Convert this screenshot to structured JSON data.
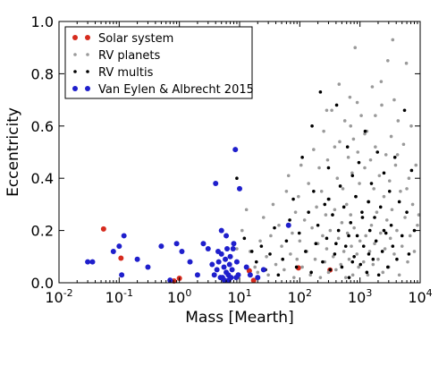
{
  "chart_data": {
    "type": "scatter",
    "xlabel": "Mass [Mearth]",
    "ylabel": "Eccentricity",
    "xscale": "log",
    "xlim": [
      0.01,
      10000
    ],
    "ylim": [
      0,
      1.0
    ],
    "grid": false,
    "legend_position": "top-left",
    "x_ticks": [
      {
        "value": 0.01,
        "base": "10",
        "exp": "-2"
      },
      {
        "value": 0.1,
        "base": "10",
        "exp": "-1"
      },
      {
        "value": 1,
        "base": "10",
        "exp": "0"
      },
      {
        "value": 10,
        "base": "10",
        "exp": "1"
      },
      {
        "value": 100,
        "base": "10",
        "exp": "2"
      },
      {
        "value": 1000,
        "base": "10",
        "exp": "3"
      },
      {
        "value": 10000,
        "base": "10",
        "exp": "4"
      }
    ],
    "y_ticks": [
      "0.0",
      "0.2",
      "0.4",
      "0.6",
      "0.8",
      "1.0"
    ],
    "series": [
      {
        "name": "Solar system",
        "color": "#d62b1e",
        "marker_radius": 3,
        "points": [
          [
            0.055,
            0.206
          ],
          [
            0.815,
            0.007
          ],
          [
            1.0,
            0.017
          ],
          [
            0.107,
            0.094
          ],
          [
            318,
            0.049
          ],
          [
            95,
            0.057
          ],
          [
            14.5,
            0.046
          ],
          [
            17.1,
            0.009
          ]
        ]
      },
      {
        "name": "RV planets",
        "color": "#9a9a9a",
        "marker_radius": 1.8,
        "points": [
          [
            9,
            0.13
          ],
          [
            11,
            0.2
          ],
          [
            13,
            0.28
          ],
          [
            15,
            0.12
          ],
          [
            18,
            0.06
          ],
          [
            20,
            0.04
          ],
          [
            22,
            0.16
          ],
          [
            25,
            0.25
          ],
          [
            28,
            0.1
          ],
          [
            30,
            0.03
          ],
          [
            33,
            0.18
          ],
          [
            36,
            0.3
          ],
          [
            40,
            0.07
          ],
          [
            45,
            0.22
          ],
          [
            50,
            0.14
          ],
          [
            55,
            0.05
          ],
          [
            60,
            0.35
          ],
          [
            65,
            0.41
          ],
          [
            70,
            0.11
          ],
          [
            75,
            0.19
          ],
          [
            80,
            0.02
          ],
          [
            85,
            0.27
          ],
          [
            90,
            0.09
          ],
          [
            95,
            0.33
          ],
          [
            100,
            0.16
          ],
          [
            105,
            0.45
          ],
          [
            110,
            0.06
          ],
          [
            120,
            0.24
          ],
          [
            130,
            0.12
          ],
          [
            140,
            0.38
          ],
          [
            150,
            0.03
          ],
          [
            160,
            0.21
          ],
          [
            170,
            0.51
          ],
          [
            180,
            0.09
          ],
          [
            190,
            0.29
          ],
          [
            200,
            0.15
          ],
          [
            210,
            0.44
          ],
          [
            220,
            0.02
          ],
          [
            230,
            0.35
          ],
          [
            240,
            0.18
          ],
          [
            250,
            0.58
          ],
          [
            260,
            0.08
          ],
          [
            270,
            0.26
          ],
          [
            280,
            0.13
          ],
          [
            290,
            0.47
          ],
          [
            300,
            0.04
          ],
          [
            310,
            0.32
          ],
          [
            320,
            0.2
          ],
          [
            340,
            0.66
          ],
          [
            360,
            0.1
          ],
          [
            380,
            0.28
          ],
          [
            400,
            0.05
          ],
          [
            420,
            0.4
          ],
          [
            440,
            0.17
          ],
          [
            460,
            0.54
          ],
          [
            480,
            0.07
          ],
          [
            500,
            0.23
          ],
          [
            520,
            0.36
          ],
          [
            540,
            0.12
          ],
          [
            560,
            0.62
          ],
          [
            580,
            0.02
          ],
          [
            600,
            0.3
          ],
          [
            620,
            0.19
          ],
          [
            640,
            0.48
          ],
          [
            660,
            0.09
          ],
          [
            680,
            0.71
          ],
          [
            700,
            0.26
          ],
          [
            720,
            0.14
          ],
          [
            740,
            0.42
          ],
          [
            760,
            0.03
          ],
          [
            780,
            0.55
          ],
          [
            800,
            0.21
          ],
          [
            830,
            0.9
          ],
          [
            860,
            0.33
          ],
          [
            890,
            0.11
          ],
          [
            920,
            0.5
          ],
          [
            950,
            0.06
          ],
          [
            980,
            0.38
          ],
          [
            1000,
            0.16
          ],
          [
            1050,
            0.64
          ],
          [
            1100,
            0.25
          ],
          [
            1150,
            0.08
          ],
          [
            1200,
            0.44
          ],
          [
            1250,
            0.18
          ],
          [
            1300,
            0.58
          ],
          [
            1350,
            0.03
          ],
          [
            1400,
            0.31
          ],
          [
            1450,
            0.12
          ],
          [
            1500,
            0.47
          ],
          [
            1550,
            0.22
          ],
          [
            1600,
            0.75
          ],
          [
            1650,
            0.07
          ],
          [
            1700,
            0.36
          ],
          [
            1750,
            0.15
          ],
          [
            1800,
            0.52
          ],
          [
            1900,
            0.27
          ],
          [
            2000,
            0.09
          ],
          [
            2100,
            0.41
          ],
          [
            2200,
            0.19
          ],
          [
            2300,
            0.68
          ],
          [
            2400,
            0.04
          ],
          [
            2500,
            0.33
          ],
          [
            2600,
            0.13
          ],
          [
            2700,
            0.49
          ],
          [
            2800,
            0.24
          ],
          [
            2900,
            0.85
          ],
          [
            3000,
            0.06
          ],
          [
            3100,
            0.39
          ],
          [
            3200,
            0.17
          ],
          [
            3300,
            0.56
          ],
          [
            3400,
            0.28
          ],
          [
            3500,
            0.93
          ],
          [
            3700,
            0.11
          ],
          [
            3900,
            0.45
          ],
          [
            4100,
            0.2
          ],
          [
            4300,
            0.62
          ],
          [
            4500,
            0.03
          ],
          [
            4700,
            0.35
          ],
          [
            5000,
            0.14
          ],
          [
            5300,
            0.53
          ],
          [
            5600,
            0.25
          ],
          [
            5900,
            0.84
          ],
          [
            6200,
            0.08
          ],
          [
            6500,
            0.4
          ],
          [
            6800,
            0.18
          ],
          [
            7100,
            0.6
          ],
          [
            7500,
            0.3
          ],
          [
            8000,
            0.12
          ],
          [
            8500,
            0.45
          ],
          [
            9000,
            0.22
          ],
          [
            9500,
            0.26
          ],
          [
            2250,
            0.77
          ],
          [
            1800,
            0.64
          ],
          [
            1200,
            0.57
          ],
          [
            900,
            0.69
          ],
          [
            700,
            0.6
          ],
          [
            3700,
            0.7
          ],
          [
            4200,
            0.49
          ],
          [
            6000,
            0.36
          ],
          [
            450,
            0.76
          ],
          [
            380,
            0.52
          ],
          [
            280,
            0.66
          ]
        ]
      },
      {
        "name": "RV multis",
        "color": "#000000",
        "marker_radius": 1.8,
        "points": [
          [
            9,
            0.4
          ],
          [
            12,
            0.17
          ],
          [
            16,
            0.12
          ],
          [
            19,
            0.08
          ],
          [
            23,
            0.14
          ],
          [
            27,
            0.05
          ],
          [
            32,
            0.11
          ],
          [
            38,
            0.21
          ],
          [
            44,
            0.03
          ],
          [
            52,
            0.09
          ],
          [
            60,
            0.16
          ],
          [
            68,
            0.24
          ],
          [
            78,
            0.32
          ],
          [
            88,
            0.06
          ],
          [
            98,
            0.19
          ],
          [
            110,
            0.48
          ],
          [
            125,
            0.12
          ],
          [
            140,
            0.27
          ],
          [
            155,
            0.04
          ],
          [
            170,
            0.35
          ],
          [
            185,
            0.15
          ],
          [
            200,
            0.22
          ],
          [
            220,
            0.73
          ],
          [
            240,
            0.08
          ],
          [
            260,
            0.3
          ],
          [
            280,
            0.17
          ],
          [
            300,
            0.44
          ],
          [
            320,
            0.05
          ],
          [
            350,
            0.26
          ],
          [
            380,
            0.11
          ],
          [
            410,
            0.68
          ],
          [
            440,
            0.2
          ],
          [
            470,
            0.37
          ],
          [
            500,
            0.06
          ],
          [
            540,
            0.29
          ],
          [
            580,
            0.14
          ],
          [
            620,
            0.52
          ],
          [
            660,
            0.02
          ],
          [
            700,
            0.23
          ],
          [
            750,
            0.41
          ],
          [
            800,
            0.1
          ],
          [
            850,
            0.33
          ],
          [
            900,
            0.18
          ],
          [
            960,
            0.46
          ],
          [
            1020,
            0.07
          ],
          [
            1080,
            0.27
          ],
          [
            1150,
            0.14
          ],
          [
            1220,
            0.58
          ],
          [
            1300,
            0.04
          ],
          [
            1380,
            0.31
          ],
          [
            1460,
            0.2
          ],
          [
            1550,
            0.38
          ],
          [
            1650,
            0.09
          ],
          [
            1750,
            0.25
          ],
          [
            1850,
            0.16
          ],
          [
            1950,
            0.5
          ],
          [
            2050,
            0.03
          ],
          [
            2200,
            0.29
          ],
          [
            2350,
            0.12
          ],
          [
            2500,
            0.42
          ],
          [
            2700,
            0.19
          ],
          [
            2900,
            0.06
          ],
          [
            3100,
            0.35
          ],
          [
            3300,
            0.22
          ],
          [
            3500,
            0.14
          ],
          [
            3800,
            0.48
          ],
          [
            4100,
            0.09
          ],
          [
            4500,
            0.31
          ],
          [
            5000,
            0.18
          ],
          [
            5500,
            0.66
          ],
          [
            6000,
            0.27
          ],
          [
            6500,
            0.11
          ],
          [
            7200,
            0.43
          ],
          [
            8000,
            0.2
          ],
          [
            160,
            0.6
          ],
          [
            300,
            0.32
          ],
          [
            650,
            0.18
          ],
          [
            1100,
            0.25
          ],
          [
            2500,
            0.2
          ],
          [
            400,
            0.15
          ],
          [
            750,
            0.08
          ],
          [
            1400,
            0.11
          ]
        ]
      },
      {
        "name": "Van Eylen & Albrecht 2015",
        "color": "#1f1fcc",
        "marker_radius": 3,
        "points": [
          [
            0.03,
            0.08
          ],
          [
            0.036,
            0.08
          ],
          [
            0.08,
            0.12
          ],
          [
            0.1,
            0.14
          ],
          [
            0.12,
            0.18
          ],
          [
            0.11,
            0.03
          ],
          [
            0.2,
            0.09
          ],
          [
            0.3,
            0.06
          ],
          [
            0.5,
            0.14
          ],
          [
            0.7,
            0.01
          ],
          [
            0.9,
            0.15
          ],
          [
            1.1,
            0.12
          ],
          [
            1.5,
            0.08
          ],
          [
            2.0,
            0.03
          ],
          [
            2.5,
            0.15
          ],
          [
            3.0,
            0.13
          ],
          [
            3.5,
            0.07
          ],
          [
            4.0,
            0.38
          ],
          [
            4.2,
            0.05
          ],
          [
            4.5,
            0.08
          ],
          [
            5.0,
            0.2
          ],
          [
            5.0,
            0.11
          ],
          [
            5.2,
            0.02
          ],
          [
            5.5,
            0.06
          ],
          [
            5.8,
            0.09
          ],
          [
            6.0,
            0.04
          ],
          [
            6.2,
            0.13
          ],
          [
            6.5,
            0.03
          ],
          [
            6.8,
            0.07
          ],
          [
            7.0,
            0.1
          ],
          [
            7.2,
            0.02
          ],
          [
            7.5,
            0.05
          ],
          [
            8.0,
            0.15
          ],
          [
            8.5,
            0.51
          ],
          [
            9.0,
            0.08
          ],
          [
            9.5,
            0.03
          ],
          [
            10.0,
            0.36
          ],
          [
            4.8,
            0.02
          ],
          [
            5.6,
            0.01
          ],
          [
            3.8,
            0.03
          ],
          [
            6.0,
            0.18
          ],
          [
            7.8,
            0.13
          ],
          [
            13,
            0.06
          ],
          [
            15,
            0.03
          ],
          [
            20,
            0.02
          ],
          [
            25,
            0.05
          ],
          [
            65,
            0.22
          ],
          [
            4.4,
            0.12
          ],
          [
            6.6,
            0.01
          ],
          [
            8.8,
            0.02
          ]
        ]
      }
    ]
  }
}
